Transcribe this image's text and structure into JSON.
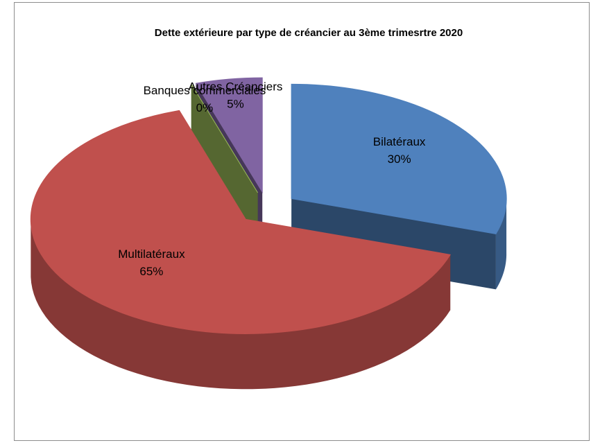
{
  "chart_data": {
    "type": "pie3d",
    "title": "Dette extérieure par type de créancier au 3ème trimesrtre 2020",
    "categories": [
      "Bilatéraux",
      "Multilatéraux",
      "Banques commerciales",
      "Autres Créanciers"
    ],
    "values": [
      30,
      65,
      0,
      5
    ],
    "value_labels": [
      "30%",
      "65%",
      "0%",
      "5%"
    ],
    "colors": [
      "#4f81bd",
      "#c0504d",
      "#9bbb59",
      "#8064a2"
    ]
  }
}
